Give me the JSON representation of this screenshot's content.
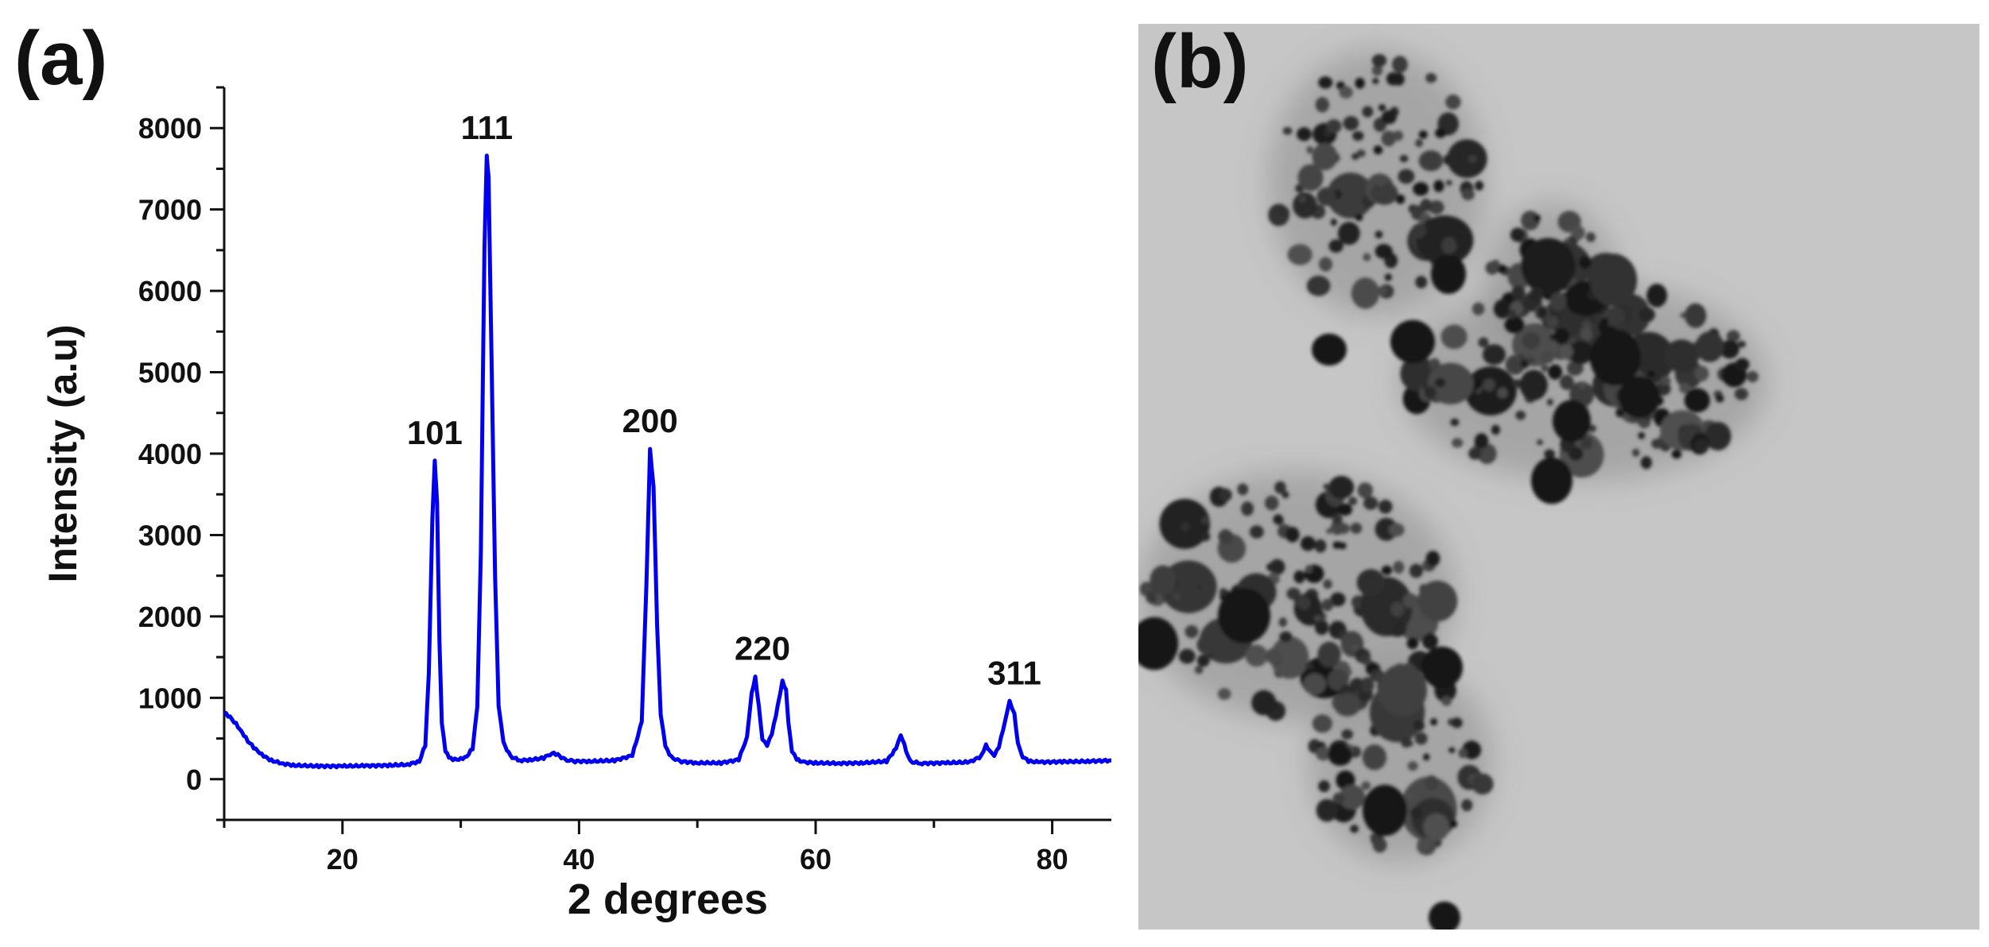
{
  "panels": {
    "a_label": "(a)",
    "b_label": "(b)"
  },
  "chart_data": {
    "type": "line",
    "title": "",
    "xlabel": "2   degrees",
    "ylabel": "Intensity (a.u)",
    "xlim": [
      10,
      85
    ],
    "ylim": [
      -500,
      8500
    ],
    "xticks": [
      20,
      40,
      60,
      80
    ],
    "yticks": [
      0,
      1000,
      2000,
      3000,
      4000,
      5000,
      6000,
      7000,
      8000
    ],
    "grid": false,
    "legend": "none",
    "series": [
      {
        "color": "#0000ee",
        "x": [
          10,
          10.5,
          11,
          11.5,
          12,
          12.5,
          13,
          13.5,
          14,
          15,
          16,
          18,
          20,
          22,
          24,
          25.5,
          26.5,
          27.0,
          27.3,
          27.6,
          27.8,
          28.0,
          28.2,
          28.4,
          28.7,
          29.0,
          29.5,
          30.0,
          30.5,
          31.0,
          31.4,
          31.7,
          32.0,
          32.2,
          32.35,
          32.6,
          32.9,
          33.2,
          33.6,
          34.2,
          35.0,
          36.0,
          37.0,
          37.7,
          38.2,
          38.8,
          39.5,
          41.0,
          43.0,
          44.5,
          45.3,
          45.7,
          46.0,
          46.3,
          46.6,
          46.9,
          47.3,
          47.8,
          48.5,
          50.0,
          52.0,
          53.5,
          54.2,
          54.6,
          54.9,
          55.2,
          55.5,
          55.9,
          56.3,
          56.8,
          57.2,
          57.5,
          57.7,
          58.0,
          58.4,
          59.0,
          60.0,
          62.0,
          64.0,
          66.0,
          66.8,
          67.2,
          67.5,
          67.8,
          68.2,
          69.0,
          71.0,
          73.0,
          74.0,
          74.4,
          74.7,
          75.1,
          75.5,
          76.0,
          76.4,
          76.8,
          77.1,
          77.5,
          78.0,
          79.0,
          81.0,
          83.0,
          85.0
        ],
        "y": [
          820,
          760,
          680,
          580,
          470,
          390,
          320,
          270,
          230,
          190,
          170,
          160,
          160,
          165,
          170,
          180,
          220,
          420,
          1300,
          3200,
          3900,
          3400,
          1700,
          700,
          350,
          260,
          240,
          250,
          280,
          380,
          900,
          2800,
          6500,
          7650,
          7400,
          5200,
          2500,
          900,
          450,
          280,
          230,
          240,
          260,
          320,
          300,
          240,
          220,
          220,
          230,
          290,
          700,
          2400,
          4050,
          3600,
          1900,
          800,
          400,
          270,
          220,
          200,
          200,
          240,
          520,
          1050,
          1250,
          900,
          500,
          420,
          550,
          900,
          1200,
          1100,
          700,
          350,
          240,
          210,
          200,
          195,
          200,
          220,
          380,
          530,
          420,
          280,
          210,
          195,
          200,
          210,
          280,
          420,
          360,
          300,
          400,
          700,
          950,
          800,
          450,
          280,
          220,
          210,
          215,
          220,
          230
        ]
      }
    ],
    "annotations": [
      {
        "text": "101",
        "x": 27.8,
        "y": 3900
      },
      {
        "text": "111",
        "x": 32.2,
        "y": 7650
      },
      {
        "text": "200",
        "x": 46.0,
        "y": 4050
      },
      {
        "text": "220",
        "x": 55.5,
        "y": 1250
      },
      {
        "text": "311",
        "x": 76.8,
        "y": 950
      }
    ]
  }
}
